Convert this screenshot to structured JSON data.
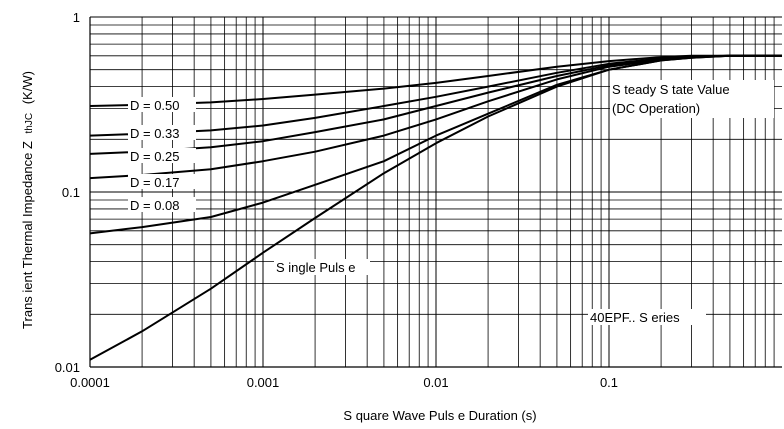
{
  "chart_data": {
    "type": "line",
    "xscale": "log",
    "yscale": "log",
    "xlim": [
      0.0001,
      1
    ],
    "ylim": [
      0.01,
      1
    ],
    "grid": true,
    "xlabel": "S quare Wave Puls e Duration (s)",
    "ylabel": "Trans ient Thermal Impedance Z",
    "ylabel_sub": "thJC",
    "ylabel_unit": "(K/W)",
    "x_ticks": [
      {
        "value": 0.0001,
        "label": "0.0001"
      },
      {
        "value": 0.001,
        "label": "0.001"
      },
      {
        "value": 0.01,
        "label": "0.01"
      },
      {
        "value": 0.1,
        "label": "0.1"
      }
    ],
    "y_ticks": [
      {
        "value": 0.01,
        "label": "0.01"
      },
      {
        "value": 0.1,
        "label": "0.1"
      },
      {
        "value": 1,
        "label": "1"
      }
    ],
    "series": [
      {
        "name": "D = 0.50",
        "x": [
          0.0001,
          0.0002,
          0.0005,
          0.001,
          0.002,
          0.005,
          0.01,
          0.02,
          0.05,
          0.1,
          0.2,
          0.3,
          0.5,
          1
        ],
        "y": [
          0.31,
          0.315,
          0.325,
          0.34,
          0.36,
          0.39,
          0.42,
          0.46,
          0.52,
          0.56,
          0.59,
          0.6,
          0.6,
          0.6
        ]
      },
      {
        "name": "D = 0.33",
        "x": [
          0.0001,
          0.0002,
          0.0005,
          0.001,
          0.002,
          0.005,
          0.01,
          0.02,
          0.05,
          0.1,
          0.2,
          0.3,
          0.5,
          1
        ],
        "y": [
          0.21,
          0.215,
          0.225,
          0.24,
          0.265,
          0.31,
          0.35,
          0.4,
          0.48,
          0.54,
          0.58,
          0.595,
          0.6,
          0.6
        ]
      },
      {
        "name": "D = 0.25",
        "x": [
          0.0001,
          0.0002,
          0.0005,
          0.001,
          0.002,
          0.005,
          0.01,
          0.02,
          0.05,
          0.1,
          0.2,
          0.3,
          0.5,
          1
        ],
        "y": [
          0.165,
          0.17,
          0.18,
          0.195,
          0.22,
          0.26,
          0.31,
          0.37,
          0.46,
          0.53,
          0.575,
          0.59,
          0.6,
          0.6
        ]
      },
      {
        "name": "D = 0.17",
        "x": [
          0.0001,
          0.0002,
          0.0005,
          0.001,
          0.002,
          0.005,
          0.01,
          0.02,
          0.05,
          0.1,
          0.2,
          0.3,
          0.5,
          1
        ],
        "y": [
          0.12,
          0.125,
          0.135,
          0.15,
          0.17,
          0.21,
          0.26,
          0.33,
          0.44,
          0.52,
          0.57,
          0.59,
          0.6,
          0.6
        ]
      },
      {
        "name": "D = 0.08",
        "x": [
          0.0001,
          0.0002,
          0.0005,
          0.001,
          0.002,
          0.005,
          0.01,
          0.02,
          0.05,
          0.1,
          0.2,
          0.3,
          0.5,
          1
        ],
        "y": [
          0.058,
          0.063,
          0.072,
          0.087,
          0.11,
          0.15,
          0.21,
          0.28,
          0.41,
          0.5,
          0.565,
          0.585,
          0.6,
          0.6
        ]
      },
      {
        "name": "Single Pulse",
        "x": [
          0.0001,
          0.0002,
          0.0005,
          0.001,
          0.002,
          0.005,
          0.01,
          0.02,
          0.05,
          0.1,
          0.2,
          0.3,
          0.5,
          1
        ],
        "y": [
          0.011,
          0.016,
          0.028,
          0.045,
          0.071,
          0.128,
          0.19,
          0.27,
          0.4,
          0.5,
          0.565,
          0.585,
          0.6,
          0.6
        ]
      }
    ],
    "annotations": {
      "steady_state_line1": "S teady S tate Value",
      "steady_state_line2": "(DC Operation)",
      "single_pulse": "S ingle Puls e",
      "series_name": "40EPF.. S eries",
      "d050": "D = 0.50",
      "d033": "D = 0.33",
      "d025": "D = 0.25",
      "d017": "D = 0.17",
      "d008": "D = 0.08"
    }
  }
}
